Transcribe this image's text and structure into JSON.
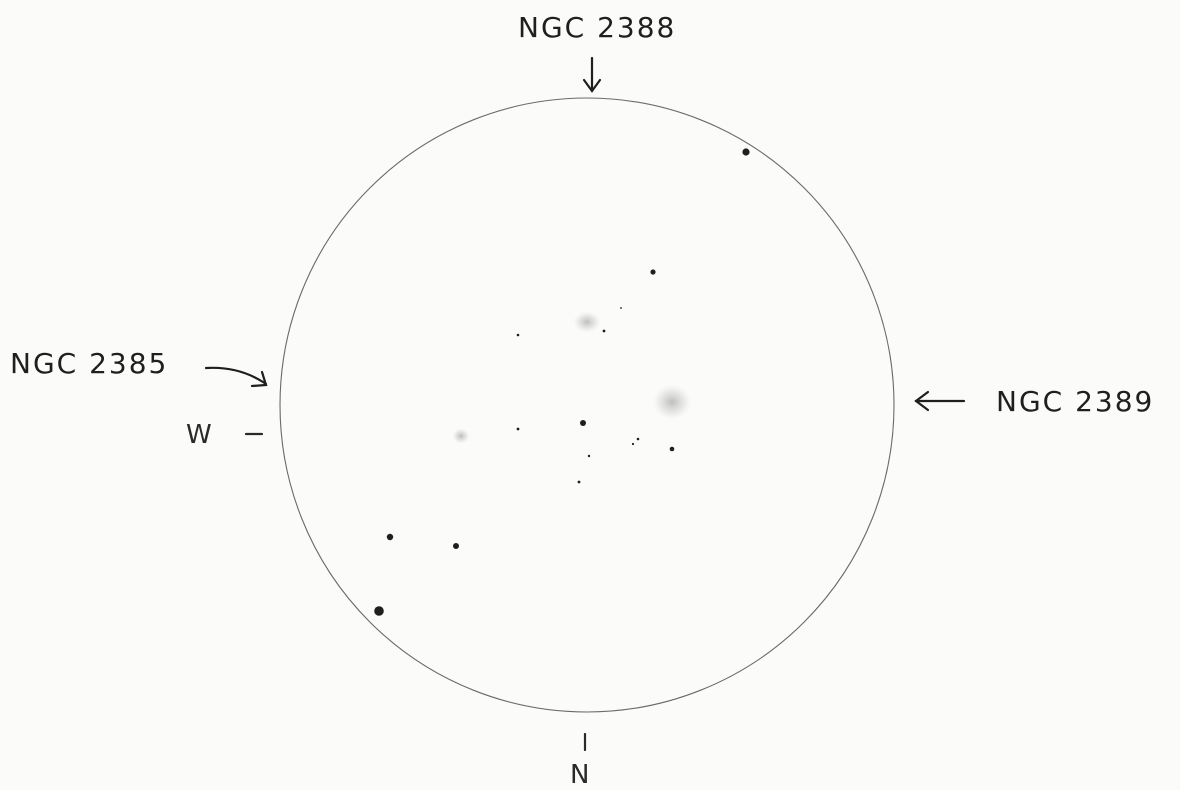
{
  "sketch": {
    "labels": {
      "top": "NGC 2388",
      "left": "NGC 2385",
      "right": "NGC 2389",
      "west": "W",
      "north": "N"
    },
    "colors": {
      "paper": "#fbfbfa",
      "ink": "#1f1f1f",
      "field_circle": "#6a6a6a",
      "galaxy_glow": "#b8b8b8"
    }
  }
}
